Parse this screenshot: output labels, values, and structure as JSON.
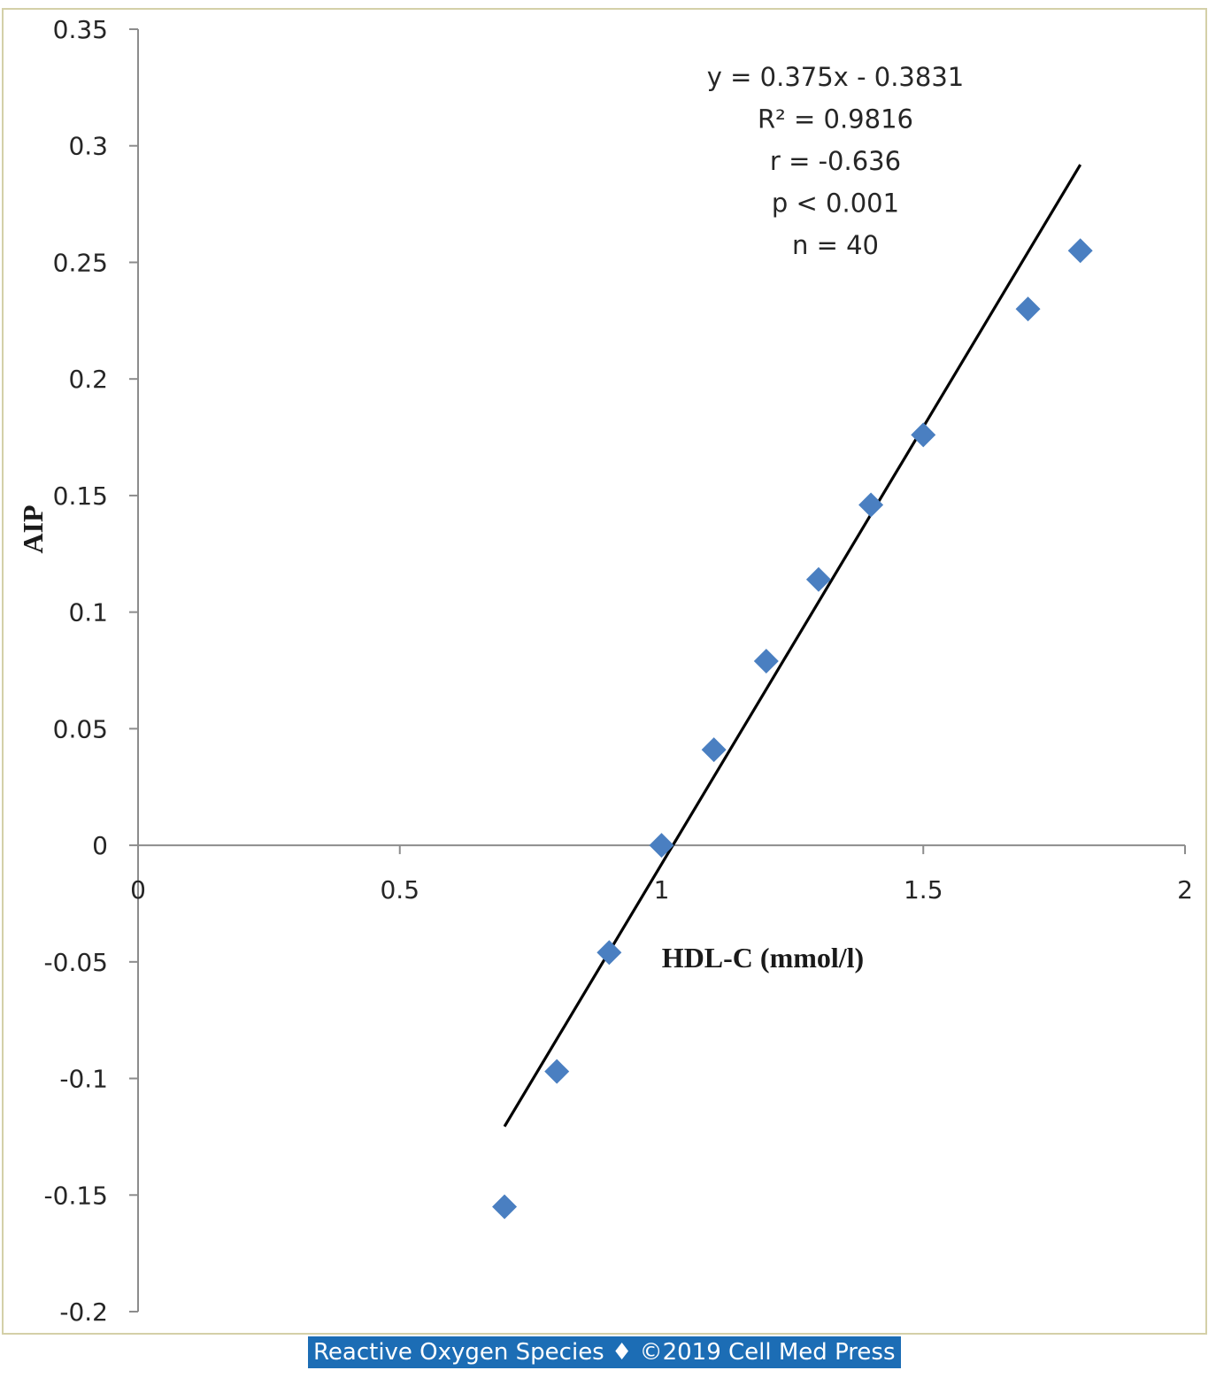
{
  "chart_data": {
    "type": "scatter",
    "xlabel": "HDL-C (mmol/l)",
    "ylabel": "AIP",
    "xlim": [
      0,
      2
    ],
    "ylim": [
      -0.2,
      0.35
    ],
    "x_ticks": [
      "0",
      "0.5",
      "1",
      "1.5",
      "2"
    ],
    "y_ticks": [
      "0.35",
      "0.3",
      "0.25",
      "0.2",
      "0.15",
      "0.1",
      "0.05",
      "0",
      "-0.05",
      "-0.1",
      "-0.15",
      "-0.2"
    ],
    "series": [
      {
        "x": [
          0.7,
          0.8,
          0.9,
          1.0,
          1.1,
          1.2,
          1.3,
          1.4,
          1.5,
          1.7,
          1.8
        ],
        "y": [
          -0.155,
          -0.097,
          -0.046,
          0.0,
          0.041,
          0.079,
          0.114,
          0.146,
          0.176,
          0.23,
          0.255
        ],
        "marker": "diamond",
        "color": "#4a7fc1"
      }
    ],
    "trendline": {
      "slope": 0.375,
      "intercept": -0.3831,
      "x_range": [
        0.7,
        1.8
      ],
      "color": "#000000"
    },
    "annotations": [
      "y = 0.375x - 0.3831",
      "R² = 0.9816",
      "r = -0.636",
      "p < 0.001",
      "n = 40"
    ]
  },
  "footer": "Reactive Oxygen Species ♦ ©2019 Cell Med Press"
}
